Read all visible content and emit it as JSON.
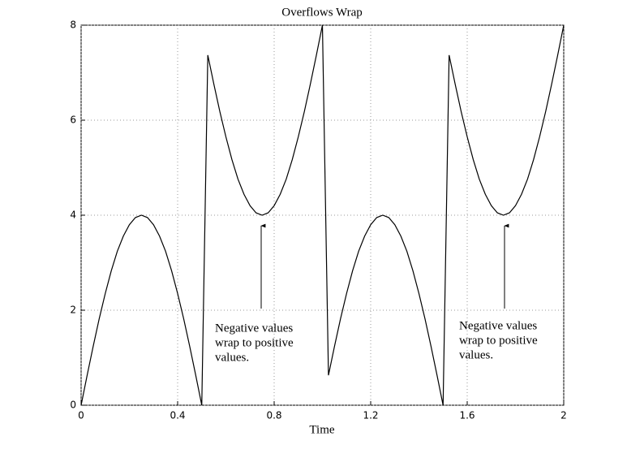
{
  "chart_data": {
    "type": "line",
    "title": "Overflows Wrap",
    "x_label": "Time",
    "x": [
      0,
      0.025,
      0.05,
      0.075,
      0.1,
      0.125,
      0.15,
      0.175,
      0.2,
      0.225,
      0.25,
      0.275,
      0.3,
      0.325,
      0.35,
      0.375,
      0.4,
      0.425,
      0.45,
      0.475,
      0.5,
      0.525,
      0.55,
      0.575,
      0.6,
      0.625,
      0.65,
      0.675,
      0.7,
      0.725,
      0.75,
      0.775,
      0.8,
      0.825,
      0.85,
      0.875,
      0.9,
      0.925,
      0.95,
      0.975,
      1,
      1.025,
      1.05,
      1.075,
      1.1,
      1.125,
      1.15,
      1.175,
      1.2,
      1.225,
      1.25,
      1.275,
      1.3,
      1.325,
      1.35,
      1.375,
      1.4,
      1.425,
      1.45,
      1.475,
      1.5,
      1.525,
      1.55,
      1.575,
      1.6,
      1.625,
      1.65,
      1.675,
      1.7,
      1.725,
      1.75,
      1.775,
      1.8,
      1.825,
      1.85,
      1.875,
      1.9,
      1.925,
      1.95,
      1.975,
      2
    ],
    "series": [
      {
        "color": "#000000",
        "values": [
          0,
          0.63,
          1.24,
          1.82,
          2.35,
          2.83,
          3.24,
          3.56,
          3.8,
          3.95,
          4,
          3.95,
          3.8,
          3.56,
          3.24,
          2.83,
          2.35,
          1.82,
          1.24,
          0.63,
          0,
          7.37,
          6.76,
          6.18,
          5.65,
          5.17,
          4.76,
          4.44,
          4.2,
          4.05,
          4,
          4.05,
          4.2,
          4.44,
          4.76,
          5.17,
          5.65,
          6.18,
          6.76,
          7.37,
          8,
          0.63,
          1.24,
          1.82,
          2.35,
          2.83,
          3.24,
          3.56,
          3.8,
          3.95,
          4,
          3.95,
          3.8,
          3.56,
          3.24,
          2.83,
          2.35,
          1.82,
          1.24,
          0.63,
          0,
          7.37,
          6.76,
          6.18,
          5.65,
          5.17,
          4.76,
          4.44,
          4.2,
          4.05,
          4,
          4.05,
          4.2,
          4.44,
          4.76,
          5.17,
          5.65,
          6.18,
          6.76,
          7.37,
          8
        ]
      }
    ],
    "xlim": [
      0,
      2
    ],
    "xticks": [
      0,
      0.4,
      0.8,
      1.2,
      1.6,
      2
    ],
    "ylim": [
      0,
      8
    ],
    "yticks": [
      0,
      2,
      4,
      6,
      8
    ],
    "grid": true,
    "annotations": [
      [
        "Negative values",
        "wrap to positive",
        "values."
      ],
      [
        "Negative values",
        "wrap to positive",
        "values."
      ]
    ]
  }
}
